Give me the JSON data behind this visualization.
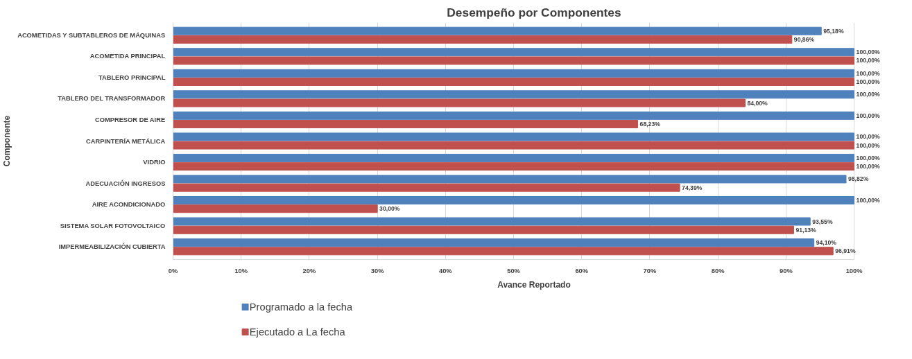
{
  "chart_data": {
    "type": "bar",
    "orientation": "horizontal",
    "title": "Desempeño por Componentes",
    "xlabel": "Avance Reportado",
    "ylabel": "Componente",
    "categories": [
      "ACOMETIDAS Y SUBTABLEROS DE MÁQUINAS",
      "ACOMETIDA PRINCIPAL",
      "TABLERO PRINCIPAL",
      "TABLERO DEL TRANSFORMADOR",
      "COMPRESOR DE AIRE",
      "CARPINTERÍA METÁLICA",
      "VIDRIO",
      "ADECUACIÓN INGRESOS",
      "AIRE ACONDICIONADO",
      "SISTEMA SOLAR FOTOVOLTAICO",
      "IMPERMEABILIZACIÓN CUBIERTA"
    ],
    "series": [
      {
        "name": "Programado a la fecha",
        "color": "#4f81bd",
        "values": [
          95.18,
          100,
          100,
          100,
          100,
          100,
          100,
          98.82,
          100,
          93.55,
          94.1
        ],
        "value_labels": [
          "95,18%",
          "100,00%",
          "100,00%",
          "100,00%",
          "100,00%",
          "100,00%",
          "100,00%",
          "98,82%",
          "100,00%",
          "93,55%",
          "94,10%"
        ]
      },
      {
        "name": "Ejecutado a La fecha",
        "color": "#c0504d",
        "values": [
          90.86,
          100,
          100,
          84.0,
          68.23,
          100,
          100,
          74.39,
          30.0,
          91.13,
          96.91
        ],
        "value_labels": [
          "90,86%",
          "100,00%",
          "100,00%",
          "84,00%",
          "68,23%",
          "100,00%",
          "100,00%",
          "74,39%",
          "30,00%",
          "91,13%",
          "96,91%"
        ]
      }
    ],
    "xlim": [
      0,
      100
    ],
    "xticks": [
      {
        "value": 0,
        "label": "0%"
      },
      {
        "value": 10,
        "label": "10%"
      },
      {
        "value": 20,
        "label": "20%"
      },
      {
        "value": 30,
        "label": "30%"
      },
      {
        "value": 40,
        "label": "40%"
      },
      {
        "value": 50,
        "label": "50%"
      },
      {
        "value": 60,
        "label": "60%"
      },
      {
        "value": 70,
        "label": "70%"
      },
      {
        "value": 80,
        "label": "80%"
      },
      {
        "value": 90,
        "label": "90%"
      },
      {
        "value": 100,
        "label": "100%"
      }
    ],
    "grid": "x",
    "legend": "bottom left"
  }
}
